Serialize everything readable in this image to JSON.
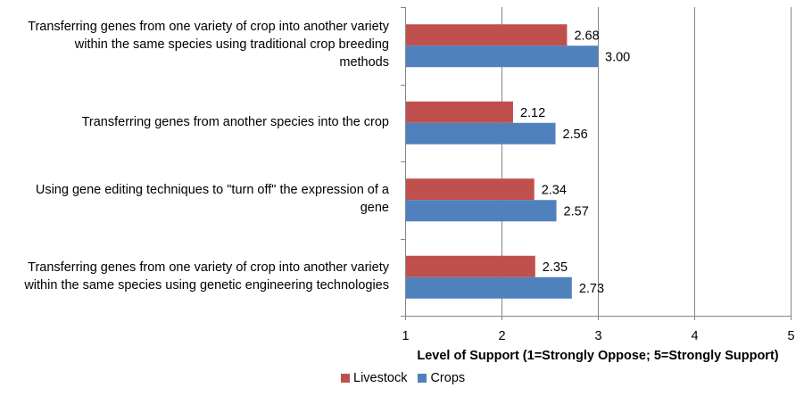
{
  "chart_data": {
    "type": "bar",
    "orientation": "horizontal",
    "categories": [
      "Transferring genes from one variety of crop into another variety within the same species using traditional crop breeding methods",
      "Transferring genes from another species into the crop",
      "Using gene editing techniques to \"turn off\" the expression of a gene",
      "Transferring genes from one variety of crop into another variety within the same species using genetic engineering technologies"
    ],
    "category_lines": [
      [
        "Transferring genes from one variety of crop into another variety",
        "within the same species using traditional crop breeding",
        "methods"
      ],
      [
        "Transferring genes from another species into the crop"
      ],
      [
        "Using gene editing techniques to \"turn off\" the expression of a",
        "gene"
      ],
      [
        "Transferring genes from one variety of crop into another variety",
        "within the same species using genetic engineering technologies"
      ]
    ],
    "series": [
      {
        "name": "Livestock",
        "color": "#C0504D",
        "values": [
          2.68,
          2.12,
          2.34,
          2.35
        ],
        "labels": [
          "2.68",
          "2.12",
          "2.34",
          "2.35"
        ]
      },
      {
        "name": "Crops",
        "color": "#4F81BD",
        "values": [
          3.0,
          2.56,
          2.57,
          2.73
        ],
        "labels": [
          "3.00",
          "2.56",
          "2.57",
          "2.73"
        ]
      }
    ],
    "xlim": [
      1,
      5
    ],
    "xticks": [
      "1",
      "2",
      "3",
      "4",
      "5"
    ],
    "xlabel": "Level of Support (1=Strongly Oppose; 5=Strongly Support)",
    "ylabel": "",
    "title": "",
    "grid": "vertical",
    "legend": "bottom"
  }
}
